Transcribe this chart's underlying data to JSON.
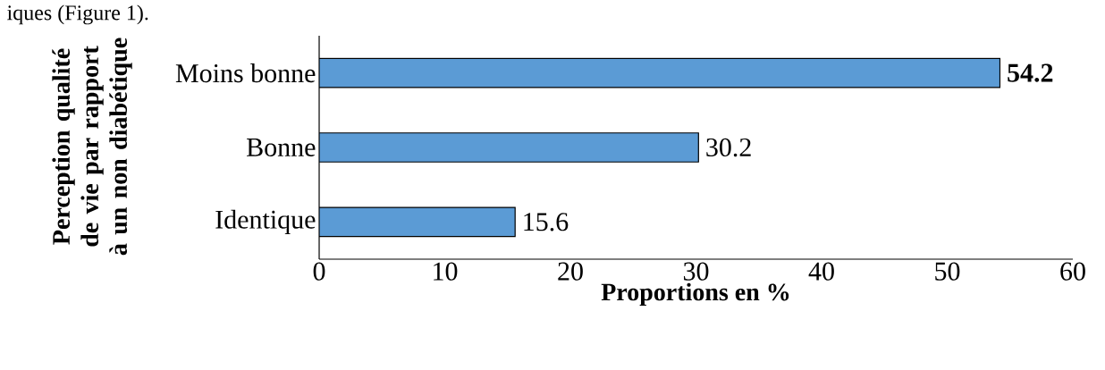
{
  "chart_data": {
    "type": "bar",
    "orientation": "horizontal",
    "categories": [
      "Moins bonne",
      "Bonne",
      "Identique"
    ],
    "values": [
      54.2,
      30.2,
      15.6
    ],
    "value_labels": [
      "**54.2**",
      "30.2",
      "15.6"
    ],
    "color": "#5b9bd5",
    "xlim": [
      0,
      60
    ],
    "xticks": [
      0,
      10,
      20,
      30,
      40,
      50,
      60
    ],
    "xlabel": "Proportions en %",
    "ylabel": "Perception qualité de vie par rapport à un non diabétique",
    "annotations": [
      "iques (Figure 1)."
    ],
    "grid": false
  }
}
